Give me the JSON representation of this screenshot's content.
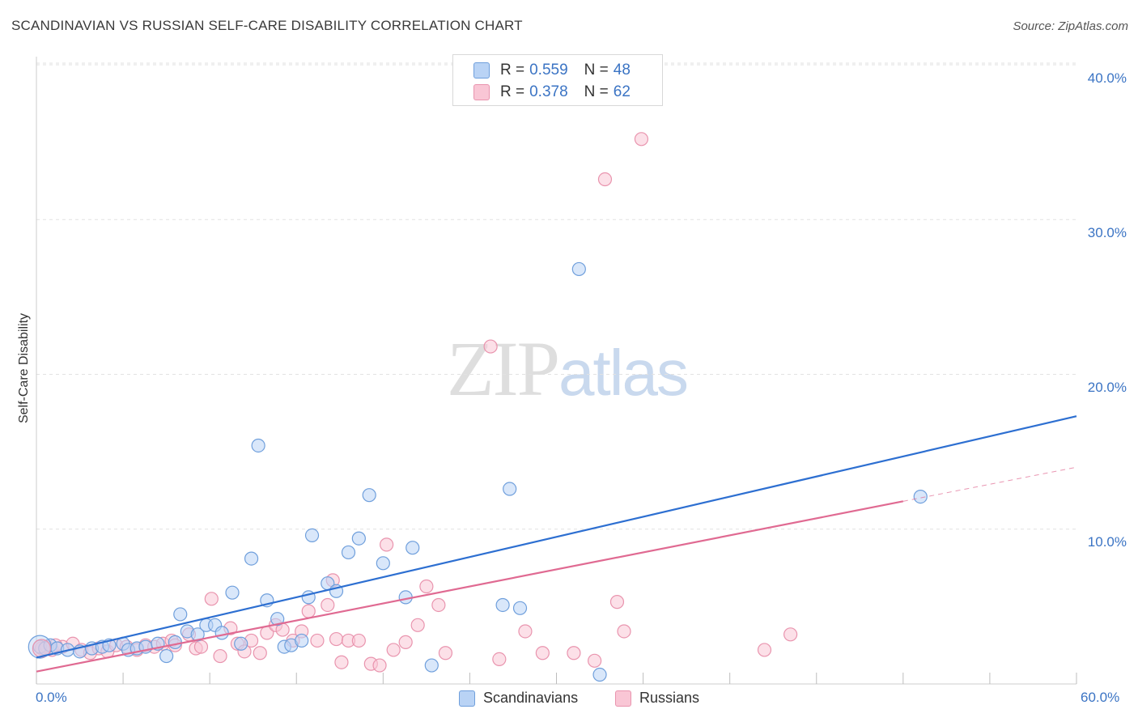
{
  "title": "SCANDINAVIAN VS RUSSIAN SELF-CARE DISABILITY CORRELATION CHART",
  "source": "Source: ZipAtlas.com",
  "watermark": {
    "zip": "ZIP",
    "atlas": "atlas"
  },
  "colors": {
    "scandinavians_fill": "#b9d3f5",
    "scandinavians_stroke": "#6f9fdc",
    "scandinavians_line": "#2d6fd1",
    "russians_fill": "#f9c6d5",
    "russians_stroke": "#e994ae",
    "russians_line": "#e06a92",
    "axis_label": "#3b74c4",
    "grid": "#e2e2e2"
  },
  "legend": {
    "rows": [
      {
        "r_label": "R =",
        "r_value": "0.559",
        "n_label": "N =",
        "n_value": "48"
      },
      {
        "r_label": "R =",
        "r_value": "0.378",
        "n_label": "N =",
        "n_value": "62"
      }
    ],
    "bottom": [
      "Scandinavians",
      "Russians"
    ]
  },
  "chart_data": {
    "type": "scatter",
    "ylabel": "Self-Care Disability",
    "xlim": [
      0,
      60
    ],
    "ylim": [
      0,
      40
    ],
    "x_tick_labels": [
      "0.0%",
      "60.0%"
    ],
    "y_ticks": [
      10,
      20,
      30,
      40
    ],
    "y_tick_labels": [
      "10.0%",
      "20.0%",
      "30.0%",
      "40.0%"
    ],
    "grid": true,
    "legend_placement": "top-center",
    "series": [
      {
        "name": "Scandinavians",
        "R": 0.559,
        "N": 48,
        "trend": {
          "x": [
            0,
            60
          ],
          "y": [
            1.7,
            17.3
          ]
        },
        "points": [
          [
            0.2,
            2.4
          ],
          [
            0.5,
            2.3
          ],
          [
            0.8,
            2.5
          ],
          [
            1.2,
            2.3
          ],
          [
            1.8,
            2.2
          ],
          [
            2.5,
            2.1
          ],
          [
            3.2,
            2.3
          ],
          [
            3.8,
            2.4
          ],
          [
            4.2,
            2.5
          ],
          [
            5.0,
            2.6
          ],
          [
            5.3,
            2.2
          ],
          [
            5.8,
            2.3
          ],
          [
            6.3,
            2.4
          ],
          [
            7.0,
            2.6
          ],
          [
            7.5,
            1.8
          ],
          [
            8.0,
            2.7
          ],
          [
            8.3,
            4.5
          ],
          [
            8.7,
            3.4
          ],
          [
            9.3,
            3.2
          ],
          [
            9.8,
            3.8
          ],
          [
            10.3,
            3.8
          ],
          [
            10.7,
            3.3
          ],
          [
            11.3,
            5.9
          ],
          [
            11.8,
            2.6
          ],
          [
            12.4,
            8.1
          ],
          [
            12.8,
            15.4
          ],
          [
            13.3,
            5.4
          ],
          [
            13.9,
            4.2
          ],
          [
            14.3,
            2.4
          ],
          [
            14.7,
            2.5
          ],
          [
            15.3,
            2.8
          ],
          [
            15.7,
            5.6
          ],
          [
            15.9,
            9.6
          ],
          [
            16.8,
            6.5
          ],
          [
            17.3,
            6.0
          ],
          [
            18.0,
            8.5
          ],
          [
            18.6,
            9.4
          ],
          [
            19.2,
            12.2
          ],
          [
            20.0,
            7.8
          ],
          [
            21.3,
            5.6
          ],
          [
            21.7,
            8.8
          ],
          [
            22.8,
            1.2
          ],
          [
            26.9,
            5.1
          ],
          [
            27.3,
            12.6
          ],
          [
            27.9,
            4.9
          ],
          [
            31.3,
            26.8
          ],
          [
            32.5,
            0.6
          ],
          [
            51.0,
            12.1
          ]
        ]
      },
      {
        "name": "Russians",
        "R": 0.378,
        "N": 62,
        "trend": {
          "x": [
            0,
            50
          ],
          "y": [
            0.8,
            11.8
          ]
        },
        "trend_dashed": {
          "x": [
            50,
            60
          ],
          "y": [
            11.8,
            14.0
          ]
        },
        "points": [
          [
            0.3,
            2.3
          ],
          [
            0.9,
            2.2
          ],
          [
            1.5,
            2.4
          ],
          [
            2.1,
            2.6
          ],
          [
            2.6,
            2.2
          ],
          [
            3.1,
            2.0
          ],
          [
            3.6,
            2.3
          ],
          [
            4.1,
            2.1
          ],
          [
            4.6,
            2.5
          ],
          [
            5.2,
            2.4
          ],
          [
            5.8,
            2.2
          ],
          [
            6.3,
            2.5
          ],
          [
            6.8,
            2.4
          ],
          [
            7.3,
            2.6
          ],
          [
            7.8,
            2.8
          ],
          [
            8.0,
            2.5
          ],
          [
            8.8,
            3.2
          ],
          [
            9.2,
            2.3
          ],
          [
            9.5,
            2.4
          ],
          [
            10.1,
            5.5
          ],
          [
            10.6,
            1.8
          ],
          [
            11.2,
            3.6
          ],
          [
            11.6,
            2.6
          ],
          [
            12.0,
            2.1
          ],
          [
            12.4,
            2.8
          ],
          [
            12.9,
            2.0
          ],
          [
            13.3,
            3.3
          ],
          [
            13.8,
            3.8
          ],
          [
            14.2,
            3.5
          ],
          [
            14.8,
            2.8
          ],
          [
            15.3,
            3.4
          ],
          [
            15.7,
            4.7
          ],
          [
            16.2,
            2.8
          ],
          [
            16.8,
            5.1
          ],
          [
            17.1,
            6.7
          ],
          [
            17.3,
            2.9
          ],
          [
            17.6,
            1.4
          ],
          [
            18.0,
            2.8
          ],
          [
            18.6,
            2.8
          ],
          [
            19.3,
            1.3
          ],
          [
            19.8,
            1.2
          ],
          [
            20.2,
            9.0
          ],
          [
            20.6,
            2.2
          ],
          [
            21.3,
            2.7
          ],
          [
            22.0,
            3.8
          ],
          [
            22.5,
            6.3
          ],
          [
            23.2,
            5.1
          ],
          [
            23.6,
            2.0
          ],
          [
            26.2,
            21.8
          ],
          [
            26.7,
            1.6
          ],
          [
            28.2,
            3.4
          ],
          [
            29.2,
            2.0
          ],
          [
            31.0,
            2.0
          ],
          [
            32.2,
            1.5
          ],
          [
            32.8,
            32.6
          ],
          [
            33.5,
            5.3
          ],
          [
            33.9,
            3.4
          ],
          [
            34.9,
            35.2
          ],
          [
            42.0,
            2.2
          ],
          [
            43.5,
            3.2
          ],
          [
            0.6,
            2.4
          ],
          [
            1.1,
            2.5
          ]
        ]
      }
    ]
  }
}
